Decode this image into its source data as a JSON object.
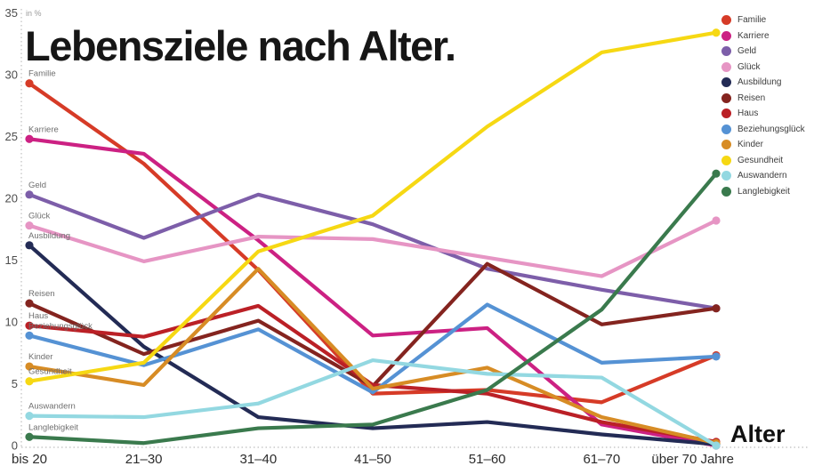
{
  "title": "Lebensziele nach Alter.",
  "x_axis_title": "Alter",
  "y_axis_unit_label": "in %",
  "chart_data": {
    "type": "line",
    "title": "Lebensziele nach Alter.",
    "xlabel": "Alter",
    "ylabel": "in %",
    "ylim": [
      0,
      35
    ],
    "y_ticks": [
      0,
      5,
      10,
      15,
      20,
      25,
      30,
      35
    ],
    "grid": false,
    "legend_position": "top-right",
    "axis_style": "dotted-light-gray",
    "categories": [
      "bis 20",
      "21–30",
      "31–40",
      "41–50",
      "51–60",
      "61–70",
      "über 70 Jahre"
    ],
    "series": [
      {
        "name": "Familie",
        "color": "#d63b27",
        "values": [
          29.3,
          22.8,
          14.2,
          4.2,
          4.5,
          3.5,
          7.3
        ]
      },
      {
        "name": "Karriere",
        "color": "#cc2183",
        "values": [
          24.8,
          23.6,
          16.6,
          8.9,
          9.5,
          1.7,
          0
        ]
      },
      {
        "name": "Geld",
        "color": "#7d5ea9",
        "values": [
          20.3,
          16.8,
          20.3,
          17.9,
          14.3,
          12.6,
          11.1
        ]
      },
      {
        "name": "Glück",
        "color": "#e695c4",
        "values": [
          17.8,
          14.9,
          16.9,
          16.7,
          15.2,
          13.7,
          18.2
        ]
      },
      {
        "name": "Ausbildung",
        "color": "#232b55",
        "values": [
          16.2,
          8.0,
          2.3,
          1.4,
          1.9,
          0.9,
          0.1
        ]
      },
      {
        "name": "Reisen",
        "color": "#84241f",
        "values": [
          11.5,
          7.4,
          10.1,
          4.8,
          14.7,
          9.8,
          11.1
        ]
      },
      {
        "name": "Haus",
        "color": "#bb2026",
        "values": [
          9.7,
          8.8,
          11.3,
          4.9,
          4.2,
          1.9,
          0.3
        ]
      },
      {
        "name": "Beziehungsglück",
        "color": "#5592d4",
        "values": [
          8.9,
          6.5,
          9.4,
          4.3,
          11.4,
          6.7,
          7.2
        ]
      },
      {
        "name": "Kinder",
        "color": "#d78c25",
        "values": [
          6.4,
          4.9,
          14.3,
          4.6,
          6.3,
          2.3,
          0.2
        ]
      },
      {
        "name": "Gesundheit",
        "color": "#f6d813",
        "values": [
          5.2,
          6.7,
          15.7,
          18.6,
          25.8,
          31.8,
          33.4
        ]
      },
      {
        "name": "Auswandern",
        "color": "#93d8e1",
        "values": [
          2.4,
          2.3,
          3.4,
          6.9,
          5.8,
          5.5,
          0
        ]
      },
      {
        "name": "Langlebigkeit",
        "color": "#3a7a4d",
        "values": [
          0.7,
          0.2,
          1.4,
          1.7,
          4.5,
          11.0,
          22.0
        ]
      }
    ]
  }
}
